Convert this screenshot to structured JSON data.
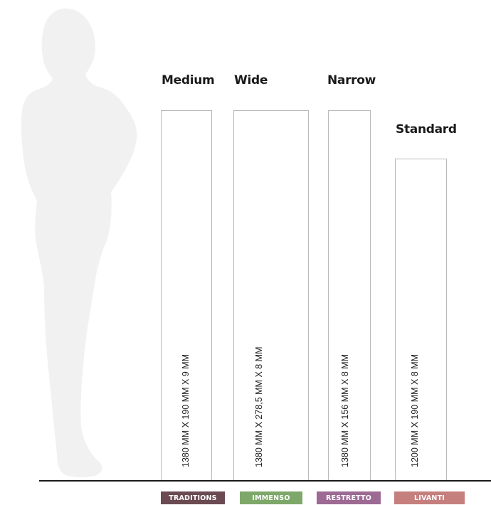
{
  "planks": [
    {
      "name": "Medium",
      "dimensions": "1380 MM X 190 MM X 9 MM"
    },
    {
      "name": "Wide",
      "dimensions": "1380 MM X 278,5 MM X 8 MM"
    },
    {
      "name": "Narrow",
      "dimensions": "1380 MM X 156 MM X 8 MM"
    },
    {
      "name": "Standard",
      "dimensions": "1200 MM X 190 MM X 8 MM"
    }
  ],
  "collections": [
    {
      "label": "TRADITIONS",
      "color": "#6b4a52"
    },
    {
      "label": "IMMENSO",
      "color": "#7ea86a"
    },
    {
      "label": "RESTRETTO",
      "color": "#9c6a93"
    },
    {
      "label": "LIVANTI",
      "color": "#c57f7d"
    }
  ],
  "colors": {
    "silhouette": "#f1f1f1",
    "floor": "#1a1a1a",
    "plank_border": "#b9b9b9"
  }
}
